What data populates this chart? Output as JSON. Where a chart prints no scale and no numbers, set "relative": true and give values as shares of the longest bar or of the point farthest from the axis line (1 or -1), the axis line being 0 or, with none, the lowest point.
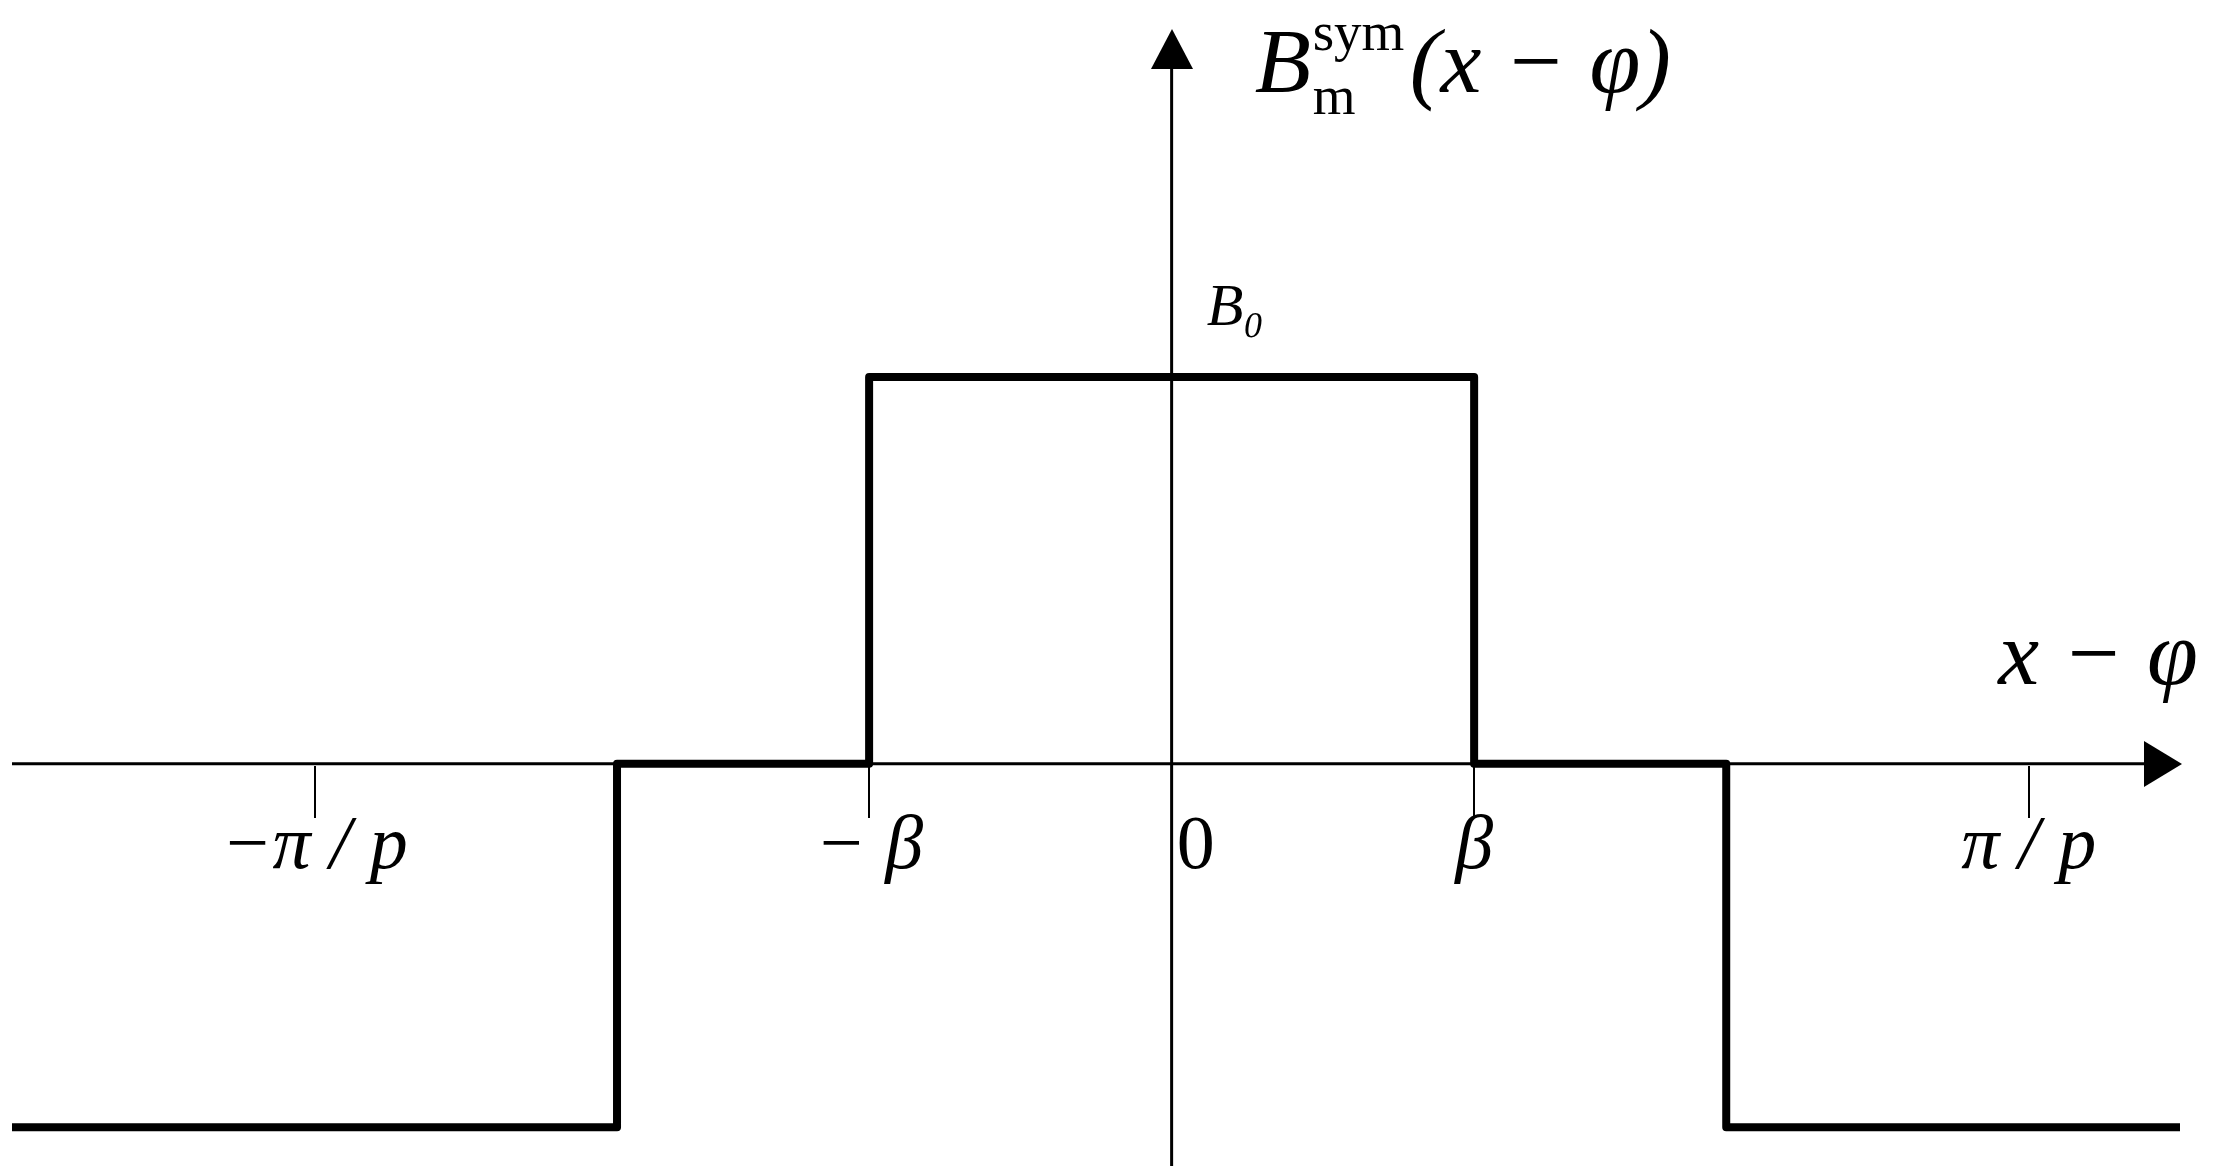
{
  "chart_data": {
    "type": "step",
    "relative": true,
    "marker": "none",
    "color": "#000000",
    "categories": [
      null,
      null,
      null,
      null,
      null,
      null,
      "−π / p",
      null,
      null,
      null,
      null,
      null,
      null,
      null,
      null,
      null,
      null,
      "− β",
      null,
      null,
      null,
      null,
      null,
      "0",
      null,
      null,
      null,
      null,
      null,
      "β",
      null,
      null,
      null,
      null,
      null,
      null,
      null,
      null,
      null,
      null,
      "π / p",
      null,
      null,
      null
    ],
    "values": [
      -0.94,
      -0.94,
      -0.94,
      -0.94,
      -0.94,
      -0.94,
      -0.94,
      -0.94,
      -0.94,
      -0.94,
      -0.94,
      -0.94,
      0,
      0,
      0,
      0,
      0,
      1,
      1,
      1,
      1,
      1,
      1,
      1,
      1,
      1,
      1,
      1,
      1,
      0,
      0,
      0,
      0,
      0,
      -0.94,
      -0.94,
      -0.94,
      -0.94,
      -0.94,
      -0.94,
      -0.94,
      -0.94,
      -0.94,
      -0.94
    ],
    "xlabel": "x − φ",
    "ylabel": "B$_{m}$$^{sym}$(x − φ)",
    "annotations": [
      {
        "text": "B₀",
        "x": "0",
        "y": 1
      }
    ]
  }
}
